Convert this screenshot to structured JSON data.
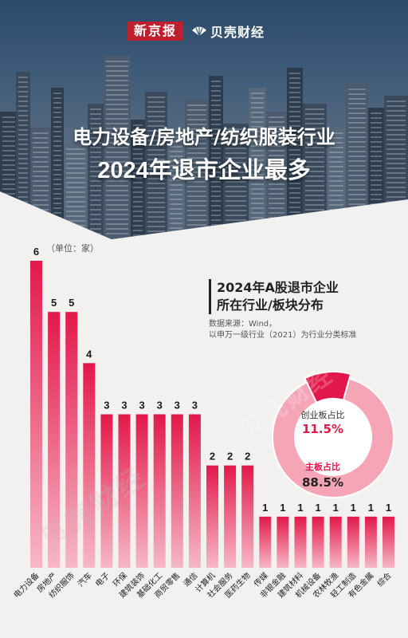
{
  "brand": {
    "logo_left": "新京报",
    "logo_right": "贝壳财经"
  },
  "headline": {
    "line1": "电力设备/房地产/纺织服装行业",
    "line2": "2024年退市企业最多"
  },
  "panel": {
    "title_line1": "2024年A股退市企业",
    "title_line2": "所在行业/板块分布",
    "source_line1": "数据来源：Wind，",
    "source_line2": "以申万一级行业（2021）为行业分类标准"
  },
  "watermark": "贝壳财经",
  "chart_data": [
    {
      "type": "bar",
      "unit": "（单位：家）",
      "categories": [
        "电力设备",
        "房地产",
        "纺织服饰",
        "汽车",
        "电子",
        "环保",
        "建筑装饰",
        "基础化工",
        "商贸零售",
        "通信",
        "计算机",
        "社会服务",
        "医药生物",
        "传媒",
        "非银金融",
        "建筑材料",
        "机械设备",
        "农林牧渔",
        "轻工制造",
        "有色金属",
        "综合"
      ],
      "values": [
        6,
        5,
        5,
        4,
        3,
        3,
        3,
        3,
        3,
        3,
        2,
        2,
        2,
        1,
        1,
        1,
        1,
        1,
        1,
        1,
        1
      ],
      "ylim": [
        0,
        6
      ],
      "grid": false,
      "colors": {
        "bar_top": "#e3184a",
        "bar_bottom": "#f6b8c6",
        "label": "#1a1a1a"
      }
    },
    {
      "type": "pie",
      "variant": "donut",
      "series": [
        {
          "name": "创业板占比",
          "value": 11.5,
          "label": "11.5%",
          "color": "#e3184a"
        },
        {
          "name": "主板占比",
          "value": 88.5,
          "label": "88.5%",
          "color": "#f5a5b5"
        }
      ],
      "label_colors": {
        "name": "#333333",
        "value_small": "#e3184a",
        "value_large": "#222222"
      }
    }
  ]
}
